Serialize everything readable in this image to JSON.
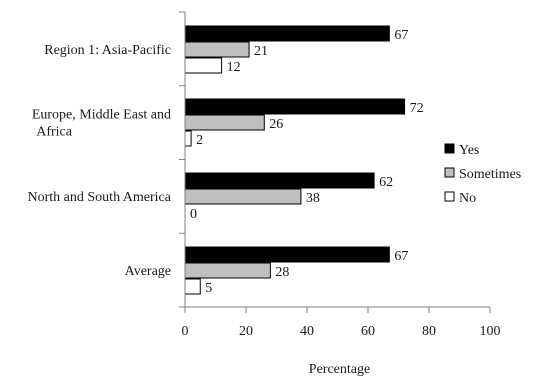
{
  "chart_data": {
    "type": "bar",
    "orientation": "horizontal",
    "categories": [
      [
        "Region 1: Asia-Pacific"
      ],
      [
        "Europe, Middle East and",
        "Africa"
      ],
      [
        "North and South America"
      ],
      [
        "Average"
      ]
    ],
    "series": [
      {
        "name": "Yes",
        "values": [
          67,
          72,
          62,
          67
        ],
        "color": "#000000"
      },
      {
        "name": "Sometimes",
        "values": [
          21,
          26,
          38,
          28
        ],
        "color": "#bfbfbf"
      },
      {
        "name": "No",
        "values": [
          12,
          2,
          0,
          5
        ],
        "color": "#ffffff"
      }
    ],
    "xlabel": "Percentage",
    "ylabel": "",
    "xlim": [
      0,
      100
    ],
    "xticks": [
      0,
      20,
      40,
      60,
      80,
      100
    ],
    "grid": false,
    "legend_position": "right"
  }
}
